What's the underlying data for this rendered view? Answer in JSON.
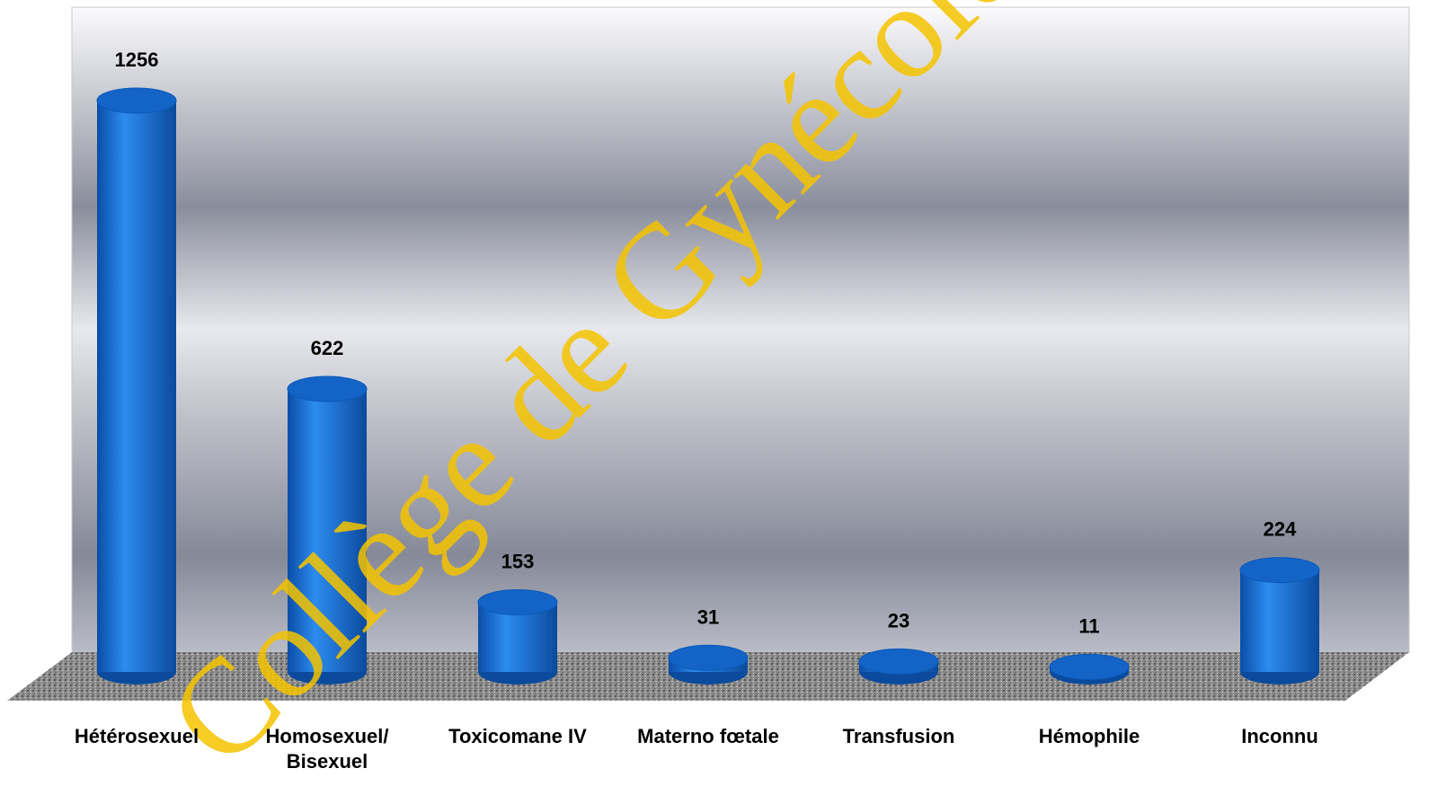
{
  "chart_data": {
    "type": "bar",
    "categories": [
      "Hétérosexuel",
      "Homosexuel/ Bisexuel",
      "Toxicomane IV",
      "Materno fœtale",
      "Transfusion",
      "Hémophile",
      "Inconnu"
    ],
    "values": [
      1256,
      622,
      153,
      31,
      23,
      11,
      224
    ],
    "color": "#1464c8",
    "watermark": "Collège de Gynécologie"
  }
}
